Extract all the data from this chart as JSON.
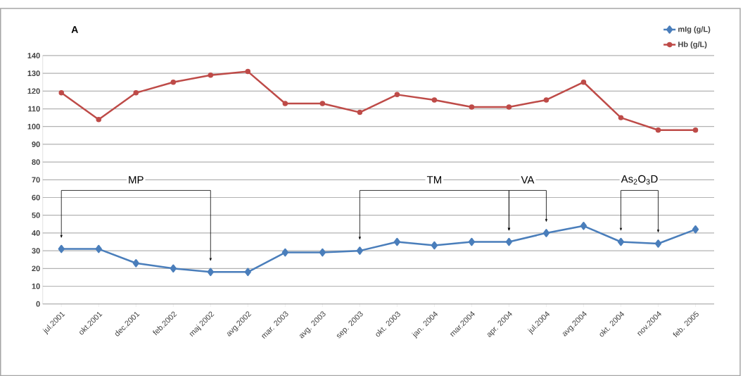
{
  "chart_data": {
    "type": "line",
    "title": "A",
    "categories": [
      "jul.2001",
      "okt.2001",
      "dec.2001",
      "feb.2002",
      "maj 2002",
      "avg.2002",
      "mar. 2003",
      "avg. 2003",
      "sep. 2003",
      "okt. 2003",
      "jan. 2004",
      "mar.2004",
      "apr. 2004",
      "jul.2004",
      "avg.2004",
      "okt. 2004",
      "nov.2004",
      "feb. 2005"
    ],
    "series": [
      {
        "name": "mIg (g/L)",
        "color": "#4a7ebb",
        "marker": "diamond",
        "values": [
          31,
          31,
          23,
          20,
          18,
          18,
          29,
          29,
          30,
          35,
          33,
          35,
          35,
          40,
          44,
          35,
          34,
          42
        ]
      },
      {
        "name": "Hb (g/L)",
        "color": "#be4b48",
        "marker": "circle",
        "values": [
          119,
          104,
          119,
          125,
          129,
          131,
          113,
          113,
          108,
          118,
          115,
          111,
          111,
          115,
          125,
          105,
          98,
          98
        ]
      }
    ],
    "ylim": [
      0,
      140
    ],
    "yticks": [
      0,
      10,
      20,
      30,
      40,
      50,
      60,
      70,
      80,
      90,
      100,
      110,
      120,
      130,
      140
    ],
    "grid": "y",
    "legend": "top right",
    "annotations": [
      "MP",
      "TM",
      "VA",
      "As$_{2}$O$_{3}$D"
    ]
  }
}
